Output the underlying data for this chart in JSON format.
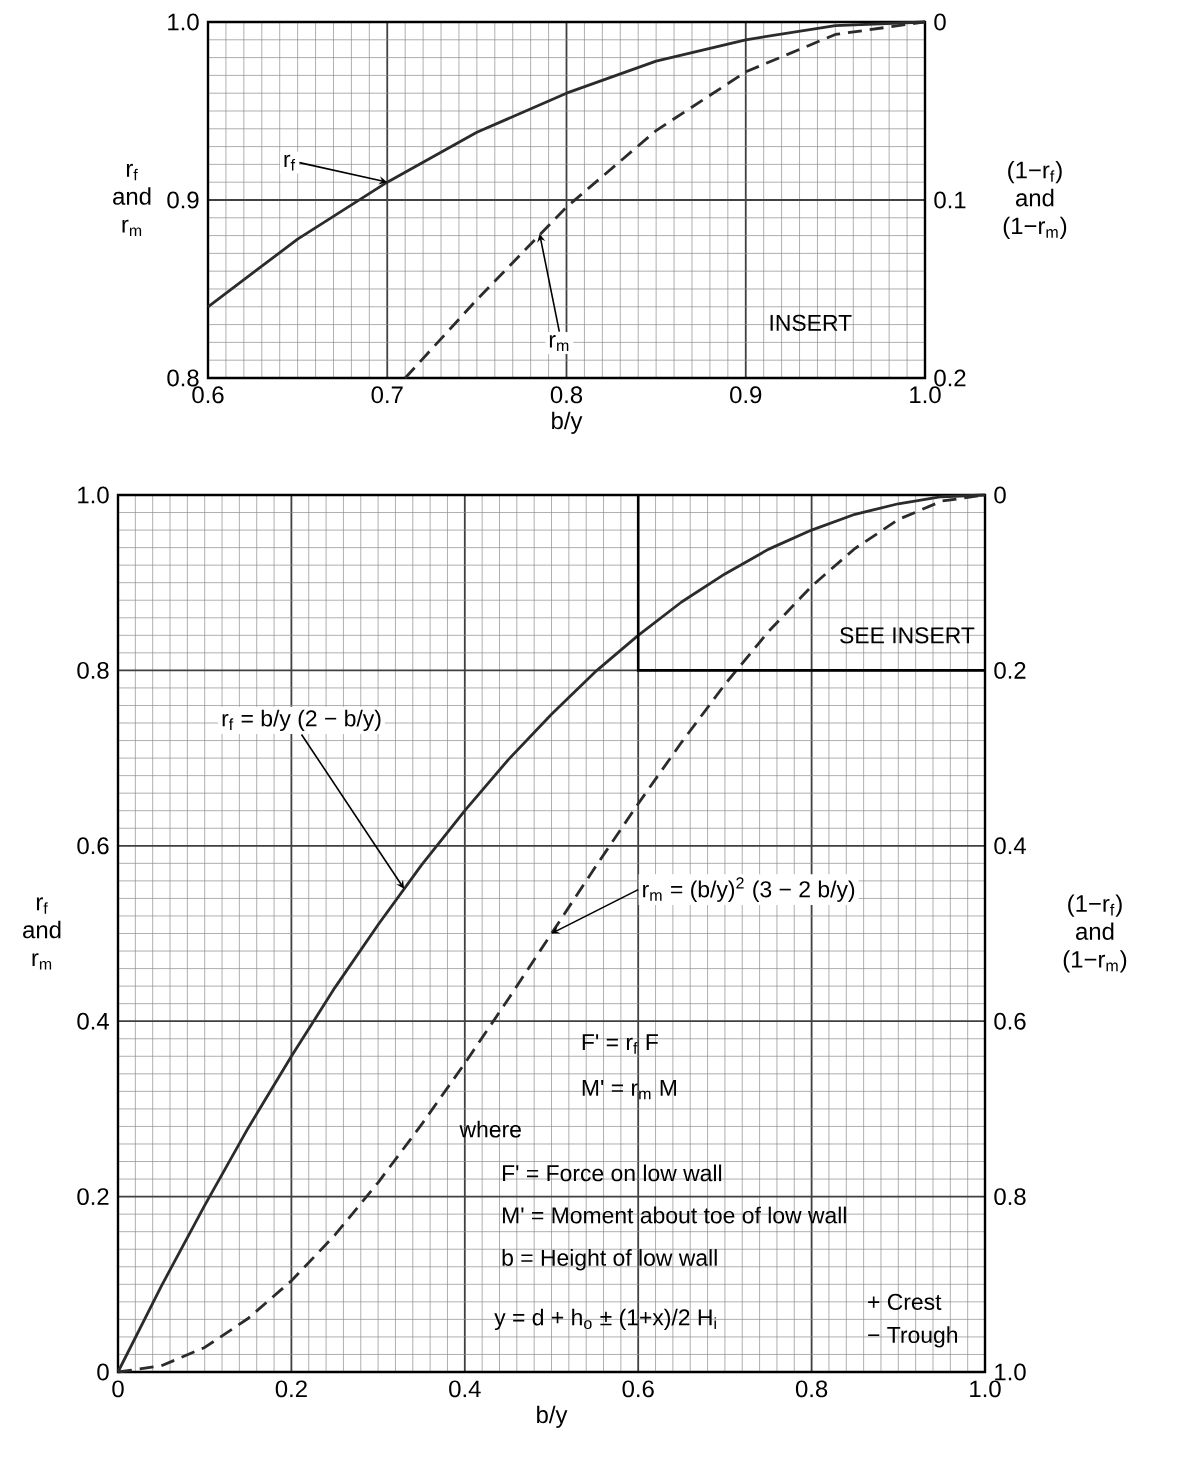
{
  "chart_data": [
    {
      "type": "line",
      "xlabel": "b/y",
      "ylabel": "r$_{f}$ and r$_{m}$",
      "y2label": "(1−r$_{f}$) and (1−r$_{m}$)",
      "xlim": [
        0.6,
        1.0
      ],
      "ylim": [
        0.8,
        1.0
      ],
      "y2lim": [
        0.2,
        0
      ],
      "xticks": [
        0.6,
        0.7,
        0.8,
        0.9,
        {
          "value": 1.0,
          "label": "1.0"
        }
      ],
      "yticks": [
        0.8,
        0.9,
        {
          "value": 1.0,
          "label": "1.0"
        }
      ],
      "y2ticks": [
        0,
        0.1,
        0.2
      ],
      "grid": true,
      "marker": "none",
      "series": [
        {
          "color": "#2b2b2b",
          "line_style": "solid",
          "x": [
            0.6,
            0.65,
            0.7,
            0.75,
            0.8,
            0.85,
            0.9,
            0.95,
            1.0
          ],
          "values": [
            0.84,
            0.878,
            0.91,
            0.938,
            0.96,
            0.978,
            0.99,
            0.998,
            1.0
          ]
        },
        {
          "color": "#2b2b2b",
          "line_style": "dashed",
          "x": [
            0.71,
            0.75,
            0.8,
            0.85,
            0.9,
            0.95,
            1.0
          ],
          "values": [
            0.8,
            0.844,
            0.896,
            0.939,
            0.972,
            0.993,
            1.0
          ]
        }
      ],
      "annotations": [
        {
          "text": "r$_{f}$",
          "x": 0.7,
          "y": 0.91
        },
        {
          "text": "r$_{m}$",
          "x": 0.785,
          "y": 0.881
        },
        "INSERT"
      ]
    },
    {
      "type": "line",
      "xlabel": "b/y",
      "ylabel": "r$_{f}$ and r$_{m}$",
      "y2label": "(1−r$_{f}$) and (1−r$_{m}$)",
      "xlim": [
        0,
        1.0
      ],
      "ylim": [
        0,
        1.0
      ],
      "y2lim": [
        1.0,
        0
      ],
      "xticks": [
        0,
        0.2,
        0.4,
        0.6,
        0.8,
        {
          "value": 1.0,
          "label": "1.0"
        }
      ],
      "yticks": [
        0,
        0.2,
        0.4,
        0.6,
        0.8,
        {
          "value": 1.0,
          "label": "1.0"
        }
      ],
      "y2ticks": [
        0,
        0.2,
        0.4,
        0.6,
        0.8,
        {
          "value": 1.0,
          "label": "1.0"
        }
      ],
      "grid": true,
      "marker": "none",
      "series": [
        {
          "color": "#2b2b2b",
          "line_style": "solid",
          "x": [
            0,
            0.05,
            0.1,
            0.15,
            0.2,
            0.25,
            0.3,
            0.35,
            0.4,
            0.45,
            0.5,
            0.55,
            0.6,
            0.65,
            0.7,
            0.75,
            0.8,
            0.85,
            0.9,
            0.95,
            1.0
          ],
          "values": [
            0,
            0.098,
            0.19,
            0.278,
            0.36,
            0.438,
            0.51,
            0.578,
            0.64,
            0.698,
            0.75,
            0.798,
            0.84,
            0.878,
            0.91,
            0.938,
            0.96,
            0.978,
            0.99,
            0.998,
            1.0
          ]
        },
        {
          "color": "#2b2b2b",
          "line_style": "dashed",
          "x": [
            0,
            0.05,
            0.1,
            0.15,
            0.2,
            0.25,
            0.3,
            0.35,
            0.4,
            0.45,
            0.5,
            0.55,
            0.6,
            0.65,
            0.7,
            0.75,
            0.8,
            0.85,
            0.9,
            0.95,
            1.0
          ],
          "values": [
            0,
            0.007,
            0.028,
            0.061,
            0.104,
            0.156,
            0.216,
            0.282,
            0.352,
            0.425,
            0.5,
            0.575,
            0.648,
            0.718,
            0.784,
            0.844,
            0.896,
            0.939,
            0.972,
            0.993,
            1.0
          ]
        }
      ],
      "annotations": [
        {
          "text": "r$_{f}$ = b/y (2 − b/y)",
          "x": 0.33,
          "y": 0.551
        },
        {
          "text": "r$_{m}$ = (b/y)$^{2}$ (3 − 2 b/y)",
          "x": 0.5,
          "y": 0.5
        },
        "SEE INSERT",
        "F' = r$_{f}$ F",
        "M' = r$_{m}$ M",
        "where",
        "F' = Force on low wall",
        "M' = Moment about toe of low wall",
        "b = Height of low wall",
        "y = d + h$_{o}$ ± (1+x)/2 H$_{i}$",
        "+ Crest",
        "− Trough"
      ]
    }
  ]
}
